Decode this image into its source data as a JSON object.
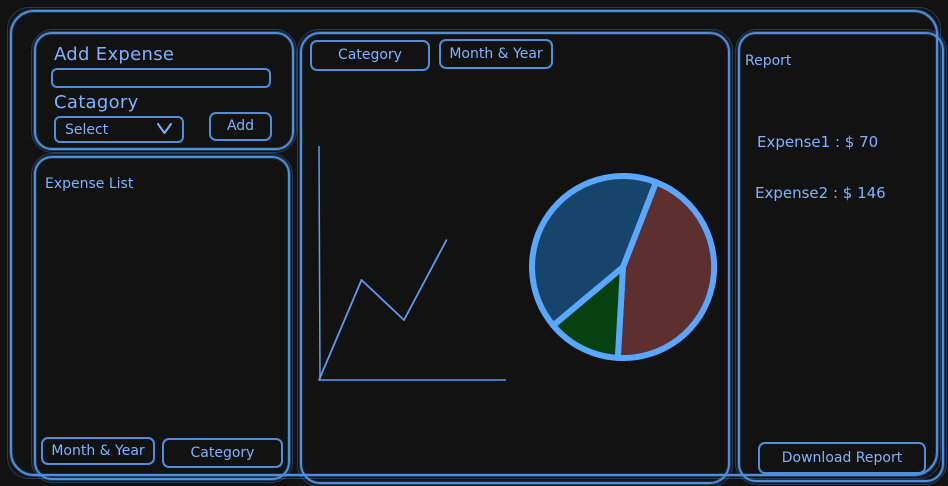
{
  "add_expense": {
    "title": "Add Expense",
    "input_value": "",
    "input_placeholder": "",
    "category_label": "Catagory",
    "select_value": "Select",
    "add_button": "Add"
  },
  "expense_list": {
    "title": "Expense List",
    "filters": [
      "Month & Year",
      "Category"
    ]
  },
  "chart_panel": {
    "tabs": [
      "Category",
      "Month & Year"
    ],
    "colors": {
      "line": "#5b9cf0",
      "pie_outline": "#5aa7ff",
      "slice_red": "#5e2f2f",
      "slice_green": "#06410f",
      "slice_blue": "#17446a"
    }
  },
  "chart_data": [
    {
      "type": "line",
      "title": "",
      "xlabel": "",
      "ylabel": "",
      "x": [
        0,
        1,
        2,
        3
      ],
      "values": [
        0,
        5,
        3,
        7
      ],
      "xlim": [
        0,
        4.4
      ],
      "ylim": [
        0,
        10
      ],
      "grid": false
    },
    {
      "type": "pie",
      "title": "",
      "slices": [
        {
          "value": 45,
          "color": "#5e2f2f"
        },
        {
          "value": 13,
          "color": "#06410f"
        },
        {
          "value": 42,
          "color": "#17446a"
        }
      ]
    }
  ],
  "report": {
    "title": "Report",
    "items": [
      "Expense1 : $ 70",
      "Expense2 : $ 146"
    ],
    "download_button": "Download Report"
  }
}
